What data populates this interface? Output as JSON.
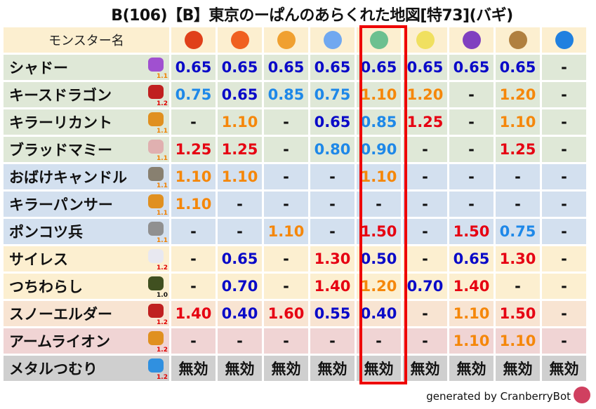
{
  "title": "B(106)【B】東京のーぱんのあらくれた地図[特73](バギ)",
  "header": {
    "name_label": "モンスター名",
    "elements": [
      {
        "icon": "fire-ball-icon",
        "color": "#e0401a"
      },
      {
        "icon": "flame-icon",
        "color": "#f06020"
      },
      {
        "icon": "explosion-icon",
        "color": "#f0a030"
      },
      {
        "icon": "ice-flower-icon",
        "color": "#70a8f0"
      },
      {
        "icon": "tornado-icon",
        "color": "#6cc090"
      },
      {
        "icon": "lightning-star-icon",
        "color": "#f0e060"
      },
      {
        "icon": "dark-swirl-icon",
        "color": "#8040c0"
      },
      {
        "icon": "rock-mountain-icon",
        "color": "#b08040"
      },
      {
        "icon": "water-wave-icon",
        "color": "#2080e0"
      }
    ],
    "highlighted_column": 4
  },
  "value_colors": {
    "dark_blue": "#0a0ac8",
    "light_blue": "#1e88e8",
    "orange": "#f5870a",
    "red": "#e60012",
    "neutral": "#111111"
  },
  "value_color_thresholds": {
    "dark_blue_below": 0.75,
    "light_blue_below": 1.0,
    "orange_below": 1.25
  },
  "rows": [
    {
      "name": "シャドー",
      "icon": "ghost-icon",
      "icon_color": "#a050d0",
      "rate": "1.1",
      "rate_color": "#f08000",
      "bg": "#dfe8d7",
      "values": [
        "0.65",
        "0.65",
        "0.65",
        "0.65",
        "0.65",
        "0.65",
        "0.65",
        "0.65",
        "-"
      ]
    },
    {
      "name": "キースドラゴン",
      "icon": "dragon-icon",
      "icon_color": "#c02020",
      "rate": "1.2",
      "rate_color": "#e00000",
      "bg": "#dfe8d7",
      "values": [
        "0.75",
        "0.65",
        "0.85",
        "0.75",
        "1.10",
        "1.20",
        "-",
        "1.20",
        "-"
      ]
    },
    {
      "name": "キラーリカント",
      "icon": "paw-icon",
      "icon_color": "#e09020",
      "rate": "1.1",
      "rate_color": "#f08000",
      "bg": "#dfe8d7",
      "values": [
        "-",
        "1.10",
        "-",
        "0.65",
        "0.85",
        "1.25",
        "-",
        "1.10",
        "-"
      ]
    },
    {
      "name": "ブラッドマミー",
      "icon": "skull-icon",
      "icon_color": "#e0b0b0",
      "rate": "1.1",
      "rate_color": "#f08000",
      "bg": "#dfe8d7",
      "values": [
        "1.25",
        "1.25",
        "-",
        "0.80",
        "0.90",
        "-",
        "-",
        "1.25",
        "-"
      ]
    },
    {
      "name": "おばけキャンドル",
      "icon": "brick-icon",
      "icon_color": "#888070",
      "rate": "1.1",
      "rate_color": "#f08000",
      "bg": "#d3e0ef",
      "values": [
        "1.10",
        "1.10",
        "-",
        "-",
        "1.10",
        "-",
        "-",
        "-",
        "-"
      ]
    },
    {
      "name": "キラーパンサー",
      "icon": "paw-icon",
      "icon_color": "#e09020",
      "rate": "1.1",
      "rate_color": "#f08000",
      "bg": "#d3e0ef",
      "values": [
        "1.10",
        "-",
        "-",
        "-",
        "-",
        "-",
        "-",
        "-",
        "-"
      ]
    },
    {
      "name": "ポンコツ兵",
      "icon": "gear-icon",
      "icon_color": "#909090",
      "rate": "1.1",
      "rate_color": "#f08000",
      "bg": "#d3e0ef",
      "values": [
        "-",
        "-",
        "1.10",
        "-",
        "1.50",
        "-",
        "1.50",
        "0.75",
        "-"
      ]
    },
    {
      "name": "サイレス",
      "icon": "wing-icon",
      "icon_color": "#e8e8f0",
      "rate": "1.2",
      "rate_color": "#e00000",
      "bg": "#fcefd0",
      "values": [
        "-",
        "0.65",
        "-",
        "1.30",
        "0.50",
        "-",
        "0.65",
        "1.30",
        "-"
      ]
    },
    {
      "name": "つちわらし",
      "icon": "slime-ghost-icon",
      "icon_color": "#405020",
      "rate": "1.0",
      "rate_color": "#111111",
      "bg": "#fcefd0",
      "values": [
        "-",
        "0.70",
        "-",
        "1.40",
        "1.20",
        "0.70",
        "1.40",
        "-",
        "-"
      ]
    },
    {
      "name": "スノーエルダー",
      "icon": "dragon-icon",
      "icon_color": "#c02020",
      "rate": "1.2",
      "rate_color": "#e00000",
      "bg": "#f8e4d2",
      "values": [
        "1.40",
        "0.40",
        "1.60",
        "0.55",
        "0.40",
        "-",
        "1.10",
        "1.50",
        "-"
      ]
    },
    {
      "name": "アームライオン",
      "icon": "paw-icon",
      "icon_color": "#e09020",
      "rate": "1.2",
      "rate_color": "#e00000",
      "bg": "#f0d4d4",
      "values": [
        "-",
        "-",
        "-",
        "-",
        "-",
        "-",
        "1.10",
        "1.10",
        "-"
      ]
    },
    {
      "name": "メタルつむり",
      "icon": "slime-icon",
      "icon_color": "#3090e0",
      "rate": "1.2",
      "rate_color": "#e00000",
      "bg": "#cfcfcf",
      "values": [
        "無効",
        "無効",
        "無効",
        "無効",
        "無効",
        "無効",
        "無効",
        "無効",
        "無効"
      ]
    }
  ],
  "footer": "generated by CranberryBot"
}
